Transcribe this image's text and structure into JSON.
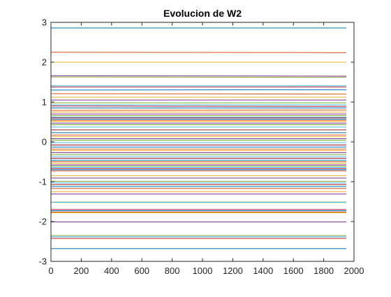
{
  "chart_data": {
    "type": "line",
    "title": "Evolucion de W2",
    "xlabel": "",
    "ylabel": "",
    "xlim": [
      0,
      2000
    ],
    "ylim": [
      -3,
      3
    ],
    "x_ticks": [
      "0",
      "200",
      "400",
      "600",
      "800",
      "1000",
      "1200",
      "1400",
      "1600",
      "1800",
      "2000"
    ],
    "y_ticks": [
      "3",
      "2",
      "1",
      "0",
      "-1",
      "-2",
      "-3"
    ],
    "x_start": 0,
    "x_end": 1950,
    "grid": false,
    "legend": "none",
    "color_order": [
      "#0072BD",
      "#D95319",
      "#EDB120",
      "#7E2F8E",
      "#77AC30",
      "#4DBEEE",
      "#A2142F"
    ],
    "series": [
      {
        "start": 2.86,
        "end": 2.86
      },
      {
        "start": 2.25,
        "end": 2.24
      },
      {
        "start": 2.0,
        "end": 2.0
      },
      {
        "start": 1.66,
        "end": 1.65
      },
      {
        "start": 1.63,
        "end": 1.62
      },
      {
        "start": 1.41,
        "end": 1.41
      },
      {
        "start": 1.38,
        "end": 1.38
      },
      {
        "start": 1.3,
        "end": 1.31
      },
      {
        "start": 1.21,
        "end": 1.2
      },
      {
        "start": 1.12,
        "end": 1.12
      },
      {
        "start": 1.05,
        "end": 1.05
      },
      {
        "start": 0.98,
        "end": 0.98
      },
      {
        "start": 0.93,
        "end": 0.93
      },
      {
        "start": 0.9,
        "end": 0.89
      },
      {
        "start": 0.85,
        "end": 0.85
      },
      {
        "start": 0.79,
        "end": 0.8
      },
      {
        "start": 0.75,
        "end": 0.75
      },
      {
        "start": 0.7,
        "end": 0.7
      },
      {
        "start": 0.66,
        "end": 0.66
      },
      {
        "start": 0.62,
        "end": 0.62
      },
      {
        "start": 0.6,
        "end": 0.6
      },
      {
        "start": 0.57,
        "end": 0.57
      },
      {
        "start": 0.54,
        "end": 0.54
      },
      {
        "start": 0.51,
        "end": 0.51
      },
      {
        "start": 0.47,
        "end": 0.47
      },
      {
        "start": 0.43,
        "end": 0.43
      },
      {
        "start": 0.37,
        "end": 0.37
      },
      {
        "start": 0.3,
        "end": 0.3
      },
      {
        "start": 0.23,
        "end": 0.23
      },
      {
        "start": 0.17,
        "end": 0.17
      },
      {
        "start": 0.13,
        "end": 0.13
      },
      {
        "start": 0.08,
        "end": 0.08
      },
      {
        "start": 0.04,
        "end": 0.04
      },
      {
        "start": -0.02,
        "end": -0.02
      },
      {
        "start": -0.08,
        "end": -0.08
      },
      {
        "start": -0.13,
        "end": -0.13
      },
      {
        "start": -0.18,
        "end": -0.18
      },
      {
        "start": -0.22,
        "end": -0.22
      },
      {
        "start": -0.27,
        "end": -0.27
      },
      {
        "start": -0.32,
        "end": -0.32
      },
      {
        "start": -0.37,
        "end": -0.37
      },
      {
        "start": -0.41,
        "end": -0.41
      },
      {
        "start": -0.46,
        "end": -0.46
      },
      {
        "start": -0.5,
        "end": -0.5
      },
      {
        "start": -0.54,
        "end": -0.54
      },
      {
        "start": -0.58,
        "end": -0.58
      },
      {
        "start": -0.61,
        "end": -0.61
      },
      {
        "start": -0.64,
        "end": -0.64
      },
      {
        "start": -0.67,
        "end": -0.67
      },
      {
        "start": -0.7,
        "end": -0.7
      },
      {
        "start": -0.73,
        "end": -0.73
      },
      {
        "start": -0.85,
        "end": -0.85
      },
      {
        "start": -0.91,
        "end": -0.91
      },
      {
        "start": -0.99,
        "end": -0.99
      },
      {
        "start": -1.03,
        "end": -1.03
      },
      {
        "start": -1.07,
        "end": -1.07
      },
      {
        "start": -1.12,
        "end": -1.12
      },
      {
        "start": -1.17,
        "end": -1.17
      },
      {
        "start": -1.25,
        "end": -1.25
      },
      {
        "start": -1.31,
        "end": -1.31
      },
      {
        "start": -1.51,
        "end": -1.51
      },
      {
        "start": -1.52,
        "end": -1.52
      },
      {
        "start": -1.7,
        "end": -1.7
      },
      {
        "start": -1.73,
        "end": -1.73
      },
      {
        "start": -1.76,
        "end": -1.76
      },
      {
        "start": -1.78,
        "end": -1.78
      },
      {
        "start": -2.01,
        "end": -2.01
      },
      {
        "start": -2.35,
        "end": -2.35
      },
      {
        "start": -2.38,
        "end": -2.38
      },
      {
        "start": -2.42,
        "end": -2.42
      },
      {
        "start": -2.68,
        "end": -2.68
      }
    ]
  }
}
